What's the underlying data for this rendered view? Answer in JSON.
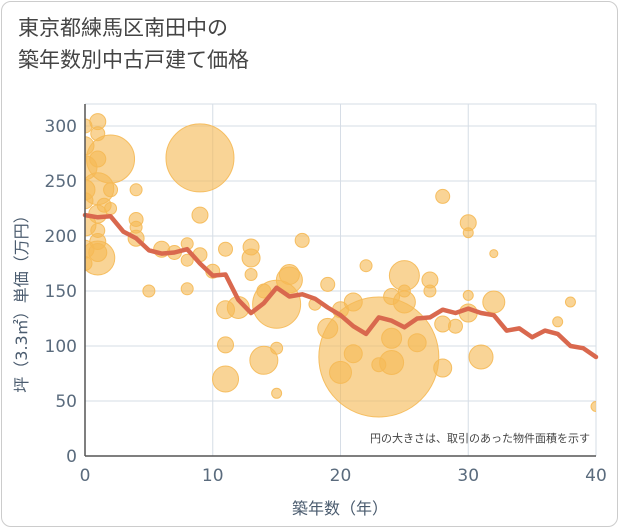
{
  "title_lines": [
    "東京都練馬区南田中の",
    "築年数別中古戸建て価格"
  ],
  "chart_data": {
    "type": "scatter",
    "xlabel": "築年数（年）",
    "ylabel": "坪（3.3㎡）単価（万円）",
    "xlim": [
      0,
      40
    ],
    "ylim": [
      0,
      320
    ],
    "xticks": [
      0,
      10,
      20,
      30,
      40
    ],
    "yticks": [
      0,
      50,
      100,
      150,
      200,
      250,
      300
    ],
    "grid": true,
    "annotation": "円の大きさは、取引のあった物件面積を示す",
    "colors": {
      "bubble": "#f5b955",
      "line": "#d9684e",
      "grid": "#d6dde6",
      "axis": "#555555"
    },
    "bubbles": [
      {
        "x": 0,
        "y": 300,
        "r": 7
      },
      {
        "x": 0,
        "y": 282,
        "r": 9
      },
      {
        "x": 0,
        "y": 262,
        "r": 12
      },
      {
        "x": 0,
        "y": 242,
        "r": 10
      },
      {
        "x": 0,
        "y": 232,
        "r": 8
      },
      {
        "x": 0,
        "y": 210,
        "r": 11
      },
      {
        "x": 0,
        "y": 188,
        "r": 9
      },
      {
        "x": 0,
        "y": 175,
        "r": 7
      },
      {
        "x": 1,
        "y": 304,
        "r": 8
      },
      {
        "x": 1,
        "y": 293,
        "r": 7
      },
      {
        "x": 1,
        "y": 270,
        "r": 8
      },
      {
        "x": 1,
        "y": 243,
        "r": 16
      },
      {
        "x": 1,
        "y": 220,
        "r": 9
      },
      {
        "x": 1,
        "y": 205,
        "r": 7
      },
      {
        "x": 1,
        "y": 195,
        "r": 8
      },
      {
        "x": 1,
        "y": 185,
        "r": 9
      },
      {
        "x": 1,
        "y": 180,
        "r": 17
      },
      {
        "x": 1.5,
        "y": 228,
        "r": 7
      },
      {
        "x": 2,
        "y": 270,
        "r": 24
      },
      {
        "x": 2,
        "y": 242,
        "r": 7
      },
      {
        "x": 2,
        "y": 225,
        "r": 6
      },
      {
        "x": 4,
        "y": 242,
        "r": 6
      },
      {
        "x": 4,
        "y": 215,
        "r": 7
      },
      {
        "x": 4,
        "y": 208,
        "r": 6
      },
      {
        "x": 4,
        "y": 198,
        "r": 8
      },
      {
        "x": 5,
        "y": 150,
        "r": 6
      },
      {
        "x": 6,
        "y": 188,
        "r": 8
      },
      {
        "x": 7,
        "y": 185,
        "r": 7
      },
      {
        "x": 8,
        "y": 193,
        "r": 6
      },
      {
        "x": 8,
        "y": 178,
        "r": 6
      },
      {
        "x": 8,
        "y": 152,
        "r": 6
      },
      {
        "x": 9,
        "y": 271,
        "r": 34
      },
      {
        "x": 9,
        "y": 219,
        "r": 8
      },
      {
        "x": 9,
        "y": 183,
        "r": 7
      },
      {
        "x": 10,
        "y": 168,
        "r": 7
      },
      {
        "x": 11,
        "y": 188,
        "r": 7
      },
      {
        "x": 11,
        "y": 133,
        "r": 9
      },
      {
        "x": 11,
        "y": 101,
        "r": 8
      },
      {
        "x": 11,
        "y": 70,
        "r": 13
      },
      {
        "x": 12,
        "y": 135,
        "r": 11
      },
      {
        "x": 13,
        "y": 190,
        "r": 8
      },
      {
        "x": 13,
        "y": 180,
        "r": 9
      },
      {
        "x": 13,
        "y": 165,
        "r": 6
      },
      {
        "x": 14,
        "y": 150,
        "r": 7
      },
      {
        "x": 14,
        "y": 87,
        "r": 14
      },
      {
        "x": 15,
        "y": 138,
        "r": 24
      },
      {
        "x": 15,
        "y": 98,
        "r": 6
      },
      {
        "x": 15,
        "y": 57,
        "r": 5
      },
      {
        "x": 16,
        "y": 165,
        "r": 10
      },
      {
        "x": 16,
        "y": 160,
        "r": 13
      },
      {
        "x": 17,
        "y": 196,
        "r": 7
      },
      {
        "x": 18,
        "y": 138,
        "r": 6
      },
      {
        "x": 19,
        "y": 156,
        "r": 7
      },
      {
        "x": 19,
        "y": 116,
        "r": 10
      },
      {
        "x": 20,
        "y": 133,
        "r": 8
      },
      {
        "x": 20,
        "y": 76,
        "r": 11
      },
      {
        "x": 21,
        "y": 140,
        "r": 9
      },
      {
        "x": 21,
        "y": 93,
        "r": 9
      },
      {
        "x": 22,
        "y": 173,
        "r": 6
      },
      {
        "x": 23,
        "y": 90,
        "r": 60
      },
      {
        "x": 23,
        "y": 83,
        "r": 7
      },
      {
        "x": 24,
        "y": 145,
        "r": 8
      },
      {
        "x": 24,
        "y": 107,
        "r": 10
      },
      {
        "x": 24,
        "y": 85,
        "r": 12
      },
      {
        "x": 25,
        "y": 164,
        "r": 15
      },
      {
        "x": 25,
        "y": 150,
        "r": 6
      },
      {
        "x": 25,
        "y": 140,
        "r": 11
      },
      {
        "x": 26,
        "y": 103,
        "r": 9
      },
      {
        "x": 27,
        "y": 160,
        "r": 8
      },
      {
        "x": 27,
        "y": 150,
        "r": 6
      },
      {
        "x": 28,
        "y": 236,
        "r": 7
      },
      {
        "x": 28,
        "y": 120,
        "r": 8
      },
      {
        "x": 28,
        "y": 80,
        "r": 9
      },
      {
        "x": 29,
        "y": 118,
        "r": 7
      },
      {
        "x": 30,
        "y": 212,
        "r": 8
      },
      {
        "x": 30,
        "y": 203,
        "r": 5
      },
      {
        "x": 30,
        "y": 146,
        "r": 5
      },
      {
        "x": 30,
        "y": 130,
        "r": 9
      },
      {
        "x": 31,
        "y": 90,
        "r": 12
      },
      {
        "x": 32,
        "y": 184,
        "r": 4
      },
      {
        "x": 32,
        "y": 140,
        "r": 11
      },
      {
        "x": 37,
        "y": 122,
        "r": 5
      },
      {
        "x": 38,
        "y": 140,
        "r": 5
      },
      {
        "x": 40,
        "y": 45,
        "r": 5
      }
    ],
    "trend": {
      "x": [
        0,
        1,
        2,
        3,
        4,
        5,
        6,
        7,
        8,
        9,
        10,
        11,
        12,
        13,
        14,
        15,
        16,
        17,
        18,
        19,
        20,
        21,
        22,
        23,
        24,
        25,
        26,
        27,
        28,
        29,
        30,
        31,
        32,
        33,
        34,
        35,
        36,
        37,
        38,
        39,
        40
      ],
      "y": [
        219,
        217,
        218,
        204,
        198,
        187,
        184,
        185,
        188,
        175,
        164,
        165,
        142,
        130,
        139,
        153,
        145,
        147,
        143,
        135,
        128,
        118,
        111,
        126,
        123,
        117,
        125,
        126,
        133,
        130,
        134,
        130,
        128,
        114,
        116,
        108,
        114,
        111,
        100,
        98,
        90
      ]
    }
  }
}
